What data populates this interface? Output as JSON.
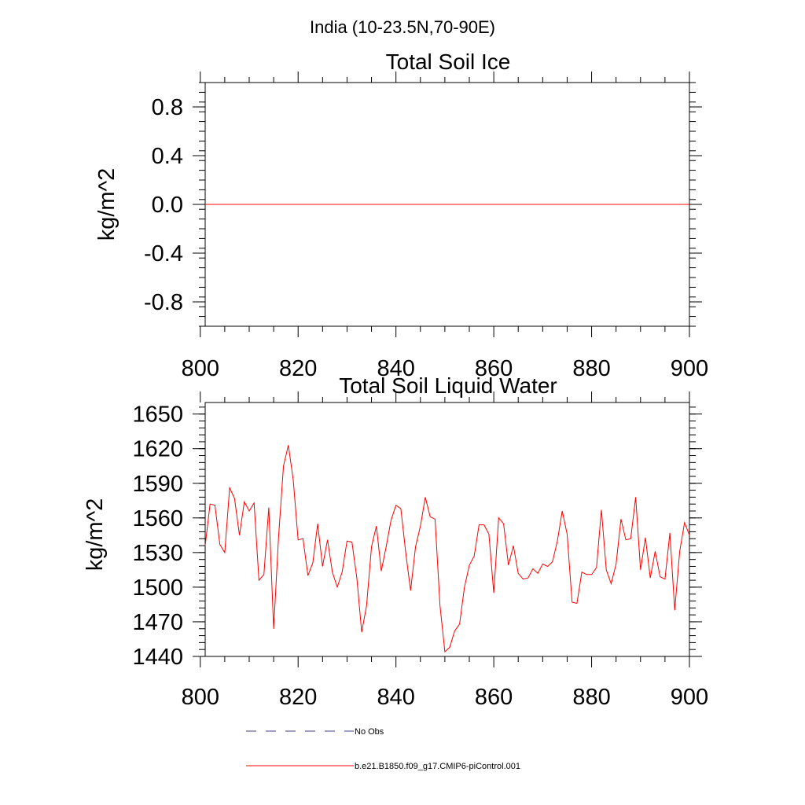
{
  "figure": {
    "main_title": "India (10-23.5N,70-90E)"
  },
  "chart_data": [
    {
      "type": "line",
      "title": "Total Soil Ice",
      "xlabel": "",
      "ylabel": "kg/m^2",
      "xlim": [
        801,
        900
      ],
      "ylim": [
        -1.0,
        1.0
      ],
      "xticks": [
        800,
        820,
        840,
        860,
        880,
        900
      ],
      "xtick_labels": [
        "800",
        "820",
        "840",
        "860",
        "880",
        "900"
      ],
      "yticks": [
        0.8,
        0.4,
        0.0,
        -0.4,
        -0.8
      ],
      "ytick_labels": [
        "0.8",
        "0.4",
        "0.0",
        "-0.4",
        "-0.8"
      ],
      "grid": false,
      "series": [
        {
          "name": "b.e21.B1850.f09_g17.CMIP6-piControl.001",
          "color": "#ff0000",
          "x_start": 801,
          "x_step": 1,
          "values": [
            0,
            0,
            0,
            0,
            0,
            0,
            0,
            0,
            0,
            0,
            0,
            0,
            0,
            0,
            0,
            0,
            0,
            0,
            0,
            0,
            0,
            0,
            0,
            0,
            0,
            0,
            0,
            0,
            0,
            0,
            0,
            0,
            0,
            0,
            0,
            0,
            0,
            0,
            0,
            0,
            0,
            0,
            0,
            0,
            0,
            0,
            0,
            0,
            0,
            0,
            0,
            0,
            0,
            0,
            0,
            0,
            0,
            0,
            0,
            0,
            0,
            0,
            0,
            0,
            0,
            0,
            0,
            0,
            0,
            0,
            0,
            0,
            0,
            0,
            0,
            0,
            0,
            0,
            0,
            0,
            0,
            0,
            0,
            0,
            0,
            0,
            0,
            0,
            0,
            0,
            0,
            0,
            0,
            0,
            0,
            0,
            0,
            0,
            0,
            0
          ]
        }
      ]
    },
    {
      "type": "line",
      "title": "Total Soil Liquid Water",
      "xlabel": "",
      "ylabel": "kg/m^2",
      "xlim": [
        801,
        900
      ],
      "ylim": [
        1440,
        1660
      ],
      "xticks": [
        800,
        820,
        840,
        860,
        880,
        900
      ],
      "xtick_labels": [
        "800",
        "820",
        "840",
        "860",
        "880",
        "900"
      ],
      "yticks": [
        1650,
        1620,
        1590,
        1560,
        1530,
        1500,
        1470,
        1440
      ],
      "ytick_labels": [
        "1650",
        "1620",
        "1590",
        "1560",
        "1530",
        "1500",
        "1470",
        "1440"
      ],
      "grid": false,
      "series": [
        {
          "name": "b.e21.B1850.f09_g17.CMIP6-piControl.001",
          "color": "#ff0000",
          "x_start": 801,
          "x_step": 1,
          "values": [
            1536,
            1572,
            1571,
            1537,
            1530,
            1586,
            1577,
            1545,
            1574,
            1566,
            1573,
            1506,
            1511,
            1569,
            1464,
            1543,
            1605,
            1623,
            1593,
            1541,
            1542,
            1510,
            1521,
            1555,
            1518,
            1541,
            1513,
            1500,
            1513,
            1540,
            1539,
            1508,
            1461,
            1484,
            1535,
            1553,
            1514,
            1535,
            1558,
            1571,
            1568,
            1530,
            1497,
            1535,
            1553,
            1578,
            1561,
            1559,
            1484,
            1444,
            1448,
            1462,
            1468,
            1500,
            1519,
            1527,
            1554,
            1554,
            1546,
            1495,
            1560,
            1555,
            1519,
            1536,
            1512,
            1507,
            1508,
            1516,
            1512,
            1520,
            1518,
            1522,
            1540,
            1566,
            1546,
            1487,
            1486,
            1513,
            1511,
            1511,
            1517,
            1567,
            1515,
            1503,
            1520,
            1559,
            1541,
            1542,
            1578,
            1515,
            1543,
            1508,
            1531,
            1509,
            1507,
            1547,
            1480,
            1531,
            1556,
            1545
          ]
        }
      ]
    }
  ],
  "legend": {
    "placement": "bottom-center",
    "entries": [
      {
        "label": "No Obs",
        "color": "#404080",
        "style": "dashed"
      },
      {
        "label": "b.e21.B1850.f09_g17.CMIP6-piControl.001",
        "color": "#ff0000",
        "style": "solid"
      }
    ]
  }
}
